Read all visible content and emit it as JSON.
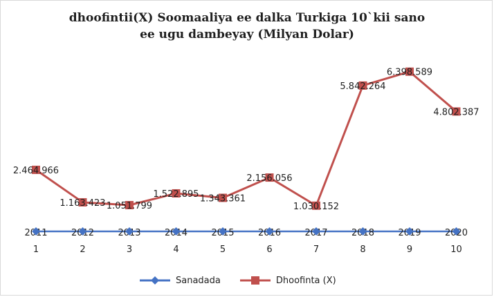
{
  "chart_data": {
    "type": "line",
    "title_line1": "dhoofintii(X)  Soomaaliya  ee dalka Turkiga  10`kii sano",
    "title_line2": "ee ugu dambeyay  (Milyan Dolar)",
    "x": [
      1,
      2,
      3,
      4,
      5,
      6,
      7,
      8,
      9,
      10
    ],
    "x_labels_top": [
      "2011",
      "2012",
      "2013",
      "2014",
      "2015",
      "2016",
      "2017",
      "2018",
      "2019",
      "2020"
    ],
    "series": [
      {
        "name": "Sanadada",
        "color": "#4472c4",
        "marker": "diamond",
        "values": [
          0,
          0,
          0,
          0,
          0,
          0,
          0,
          0,
          0,
          0
        ]
      },
      {
        "name": "Dhoofinta (X)",
        "color": "#c0504d",
        "marker": "square",
        "values": [
          2.464966,
          1.163423,
          1.051799,
          1.522895,
          1.343361,
          2.156056,
          1.030152,
          5.842264,
          6.398589,
          4.802387
        ],
        "data_labels": [
          "2.464.966",
          "1.163.423",
          "1.051.799",
          "1.522.895",
          "1.343.361",
          "2.156.056",
          "1.030.152",
          "5.842.264",
          "6.398.589",
          "4.802.387"
        ]
      }
    ],
    "ylim": [
      0,
      7
    ],
    "grid": false,
    "legend_position": "bottom"
  }
}
